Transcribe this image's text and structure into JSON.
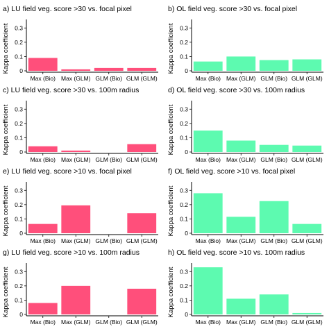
{
  "figure": {
    "ylabel": "Kappa coefficient",
    "colors": {
      "LU": "#ff4f7b",
      "OL": "#5dfab0"
    }
  },
  "chart_data": [
    {
      "type": "bar",
      "title": "a) LU field veg. score >30 vs. focal pixel",
      "categories": [
        "Max (Bio)",
        "Max (GLM)",
        "GLM (Bio)",
        "GLM (GLM)"
      ],
      "values": [
        0.09,
        0.01,
        0.02,
        0.02
      ],
      "xlabel": "",
      "ylabel": "Kappa coefficient",
      "ylim": [
        0,
        0.35
      ],
      "yticks": [
        0,
        0.1,
        0.2,
        0.3
      ],
      "color": "#ff4f7b",
      "grid": false
    },
    {
      "type": "bar",
      "title": "b) OL field veg. score >30 vs. focal pixel",
      "categories": [
        "Max (Bio)",
        "Max (GLM)",
        "GLM (Bio)",
        "GLM (GLM)"
      ],
      "values": [
        0.065,
        0.1,
        0.075,
        0.08
      ],
      "xlabel": "",
      "ylabel": "Kappa coefficient",
      "ylim": [
        0,
        0.35
      ],
      "yticks": [
        0,
        0.1,
        0.2,
        0.3
      ],
      "color": "#5dfab0",
      "grid": false
    },
    {
      "type": "bar",
      "title": "c) LU field veg. score >30 vs. 100m radius",
      "categories": [
        "Max (Bio)",
        "Max (GLM)",
        "GLM (Bio)",
        "GLM (GLM)"
      ],
      "values": [
        0.04,
        0.01,
        0,
        0.055
      ],
      "xlabel": "",
      "ylabel": "Kappa coefficient",
      "ylim": [
        0,
        0.35
      ],
      "yticks": [
        0,
        0.1,
        0.2,
        0.3
      ],
      "color": "#ff4f7b",
      "grid": false
    },
    {
      "type": "bar",
      "title": "d) OL field veg. score >30 vs. 100m radius",
      "categories": [
        "Max (Bio)",
        "Max (GLM)",
        "GLM (Bio)",
        "GLM (GLM)"
      ],
      "values": [
        0.15,
        0.08,
        0.05,
        0.045
      ],
      "xlabel": "",
      "ylabel": "Kappa coefficient",
      "ylim": [
        0,
        0.35
      ],
      "yticks": [
        0,
        0.1,
        0.2,
        0.3
      ],
      "color": "#5dfab0",
      "grid": false
    },
    {
      "type": "bar",
      "title": "e) LU field veg. score >10 vs. focal pixel",
      "categories": [
        "Max (Bio)",
        "Max (GLM)",
        "GLM (Bio)",
        "GLM (GLM)"
      ],
      "values": [
        0.065,
        0.195,
        0,
        0.14
      ],
      "xlabel": "",
      "ylabel": "Kappa coefficient",
      "ylim": [
        0,
        0.35
      ],
      "yticks": [
        0,
        0.1,
        0.2,
        0.3
      ],
      "color": "#ff4f7b",
      "grid": false
    },
    {
      "type": "bar",
      "title": "f) OL field veg. score >10 vs. focal pixel",
      "categories": [
        "Max (Bio)",
        "Max (GLM)",
        "GLM (Bio)",
        "GLM (GLM)"
      ],
      "values": [
        0.28,
        0.115,
        0.225,
        0.065
      ],
      "xlabel": "",
      "ylabel": "Kappa coefficient",
      "ylim": [
        0,
        0.35
      ],
      "yticks": [
        0,
        0.1,
        0.2,
        0.3
      ],
      "color": "#5dfab0",
      "grid": false
    },
    {
      "type": "bar",
      "title": "g) LU field veg. score >10 vs. 100m radius",
      "categories": [
        "Max (Bio)",
        "Max (GLM)",
        "GLM (Bio)",
        "GLM (GLM)"
      ],
      "values": [
        0.08,
        0.2,
        0,
        0.18
      ],
      "xlabel": "",
      "ylabel": "Kappa coefficient",
      "ylim": [
        0,
        0.35
      ],
      "yticks": [
        0,
        0.1,
        0.2,
        0.3
      ],
      "color": "#ff4f7b",
      "grid": false
    },
    {
      "type": "bar",
      "title": "h) OL field veg. score >10 vs. 100m radius",
      "categories": [
        "Max (Bio)",
        "Max (GLM)",
        "GLM (Bio)",
        "GLM (GLM)"
      ],
      "values": [
        0.33,
        0.11,
        0.14,
        0.01
      ],
      "xlabel": "",
      "ylabel": "Kappa coefficient",
      "ylim": [
        0,
        0.35
      ],
      "yticks": [
        0,
        0.1,
        0.2,
        0.3
      ],
      "color": "#5dfab0",
      "grid": false
    }
  ]
}
